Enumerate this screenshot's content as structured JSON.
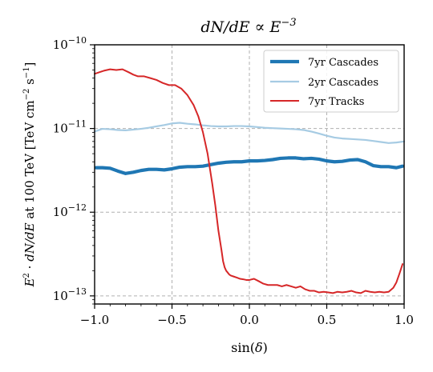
{
  "chart_data": {
    "type": "line",
    "title": "dN/dE ∝ E^-3",
    "xlabel": "sin(δ)",
    "ylabel": "E^2 · dN/dE at 100 TeV [TeV cm^-2 s^-1]",
    "xlim": [
      -1.0,
      1.0
    ],
    "ylim": [
      8e-14,
      1e-10
    ],
    "yscale": "log",
    "xticks": [
      "−1.0",
      "−0.5",
      "0.0",
      "0.5",
      "1.0"
    ],
    "yticks": [
      {
        "value": 1e-13,
        "base": "10",
        "exp": "−13"
      },
      {
        "value": 1e-12,
        "base": "10",
        "exp": "−12"
      },
      {
        "value": 1e-11,
        "base": "10",
        "exp": "−11"
      },
      {
        "value": 1e-10,
        "base": "10",
        "exp": "−10"
      }
    ],
    "grid": true,
    "legend_position": "top-right",
    "series": [
      {
        "name": "7yr Cascades",
        "color": "#1f77b4",
        "x": [
          -0.99,
          -0.95,
          -0.9,
          -0.85,
          -0.8,
          -0.75,
          -0.7,
          -0.65,
          -0.6,
          -0.55,
          -0.5,
          -0.45,
          -0.4,
          -0.35,
          -0.3,
          -0.25,
          -0.2,
          -0.15,
          -0.1,
          -0.05,
          0.0,
          0.05,
          0.1,
          0.15,
          0.2,
          0.25,
          0.3,
          0.35,
          0.4,
          0.45,
          0.5,
          0.55,
          0.6,
          0.65,
          0.7,
          0.75,
          0.8,
          0.85,
          0.9,
          0.95,
          0.99
        ],
        "y": [
          3.4e-12,
          3.4e-12,
          3.35e-12,
          3.1e-12,
          2.9e-12,
          3e-12,
          3.15e-12,
          3.25e-12,
          3.25e-12,
          3.2e-12,
          3.3e-12,
          3.45e-12,
          3.5e-12,
          3.5e-12,
          3.55e-12,
          3.7e-12,
          3.85e-12,
          3.95e-12,
          4e-12,
          4e-12,
          4.1e-12,
          4.1e-12,
          4.15e-12,
          4.25e-12,
          4.4e-12,
          4.45e-12,
          4.45e-12,
          4.35e-12,
          4.4e-12,
          4.3e-12,
          4.1e-12,
          4e-12,
          4.05e-12,
          4.2e-12,
          4.25e-12,
          4e-12,
          3.6e-12,
          3.5e-12,
          3.5e-12,
          3.4e-12,
          3.55e-12
        ]
      },
      {
        "name": "2yr Cascades",
        "color": "#a6cbe3",
        "x": [
          -1.0,
          -0.95,
          -0.9,
          -0.85,
          -0.8,
          -0.75,
          -0.7,
          -0.65,
          -0.6,
          -0.55,
          -0.5,
          -0.45,
          -0.4,
          -0.35,
          -0.3,
          -0.25,
          -0.2,
          -0.15,
          -0.1,
          -0.05,
          0.0,
          0.05,
          0.1,
          0.15,
          0.2,
          0.25,
          0.3,
          0.35,
          0.4,
          0.45,
          0.5,
          0.55,
          0.6,
          0.65,
          0.7,
          0.75,
          0.8,
          0.85,
          0.9,
          0.95,
          1.0
        ],
        "y": [
          9.2e-12,
          9.9e-12,
          9.8e-12,
          9.6e-12,
          9.5e-12,
          9.7e-12,
          9.9e-12,
          1.02e-11,
          1.06e-11,
          1.1e-11,
          1.15e-11,
          1.17e-11,
          1.14e-11,
          1.12e-11,
          1.09e-11,
          1.07e-11,
          1.06e-11,
          1.06e-11,
          1.07e-11,
          1.07e-11,
          1.06e-11,
          1.04e-11,
          1.02e-11,
          1.01e-11,
          1e-11,
          9.9e-12,
          9.8e-12,
          9.6e-12,
          9.2e-12,
          8.7e-12,
          8.2e-12,
          7.8e-12,
          7.6e-12,
          7.5e-12,
          7.4e-12,
          7.3e-12,
          7.1e-12,
          6.9e-12,
          6.7e-12,
          6.8e-12,
          7e-12
        ]
      },
      {
        "name": "7yr Tracks",
        "color": "#d62728",
        "x": [
          -1.0,
          -0.97,
          -0.94,
          -0.9,
          -0.86,
          -0.82,
          -0.78,
          -0.75,
          -0.72,
          -0.68,
          -0.64,
          -0.6,
          -0.56,
          -0.52,
          -0.48,
          -0.44,
          -0.4,
          -0.36,
          -0.33,
          -0.3,
          -0.27,
          -0.24,
          -0.22,
          -0.2,
          -0.18,
          -0.17,
          -0.16,
          -0.15,
          -0.14,
          -0.13,
          -0.12,
          -0.1,
          -0.08,
          -0.06,
          -0.04,
          -0.02,
          0.0,
          0.03,
          0.06,
          0.09,
          0.12,
          0.15,
          0.18,
          0.21,
          0.24,
          0.27,
          0.3,
          0.33,
          0.36,
          0.39,
          0.42,
          0.45,
          0.48,
          0.51,
          0.54,
          0.57,
          0.6,
          0.63,
          0.66,
          0.69,
          0.72,
          0.75,
          0.78,
          0.81,
          0.84,
          0.87,
          0.9,
          0.93,
          0.95,
          0.97,
          0.99
        ],
        "y": [
          4.5e-11,
          4.7e-11,
          4.9e-11,
          5.1e-11,
          5e-11,
          5.1e-11,
          4.7e-11,
          4.4e-11,
          4.2e-11,
          4.2e-11,
          4e-11,
          3.8e-11,
          3.5e-11,
          3.3e-11,
          3.3e-11,
          3e-11,
          2.5e-11,
          1.9e-11,
          1.4e-11,
          9e-12,
          5e-12,
          2.2e-12,
          1.2e-12,
          6e-13,
          3.5e-13,
          2.6e-13,
          2.2e-13,
          2e-13,
          1.9e-13,
          1.8e-13,
          1.75e-13,
          1.7e-13,
          1.65e-13,
          1.6e-13,
          1.58e-13,
          1.55e-13,
          1.55e-13,
          1.6e-13,
          1.5e-13,
          1.4e-13,
          1.35e-13,
          1.35e-13,
          1.35e-13,
          1.3e-13,
          1.35e-13,
          1.3e-13,
          1.25e-13,
          1.3e-13,
          1.2e-13,
          1.15e-13,
          1.15e-13,
          1.1e-13,
          1.12e-13,
          1.1e-13,
          1.08e-13,
          1.12e-13,
          1.1e-13,
          1.12e-13,
          1.15e-13,
          1.1e-13,
          1.08e-13,
          1.15e-13,
          1.12e-13,
          1.1e-13,
          1.12e-13,
          1.1e-13,
          1.12e-13,
          1.25e-13,
          1.45e-13,
          1.85e-13,
          2.4e-13
        ]
      }
    ]
  }
}
